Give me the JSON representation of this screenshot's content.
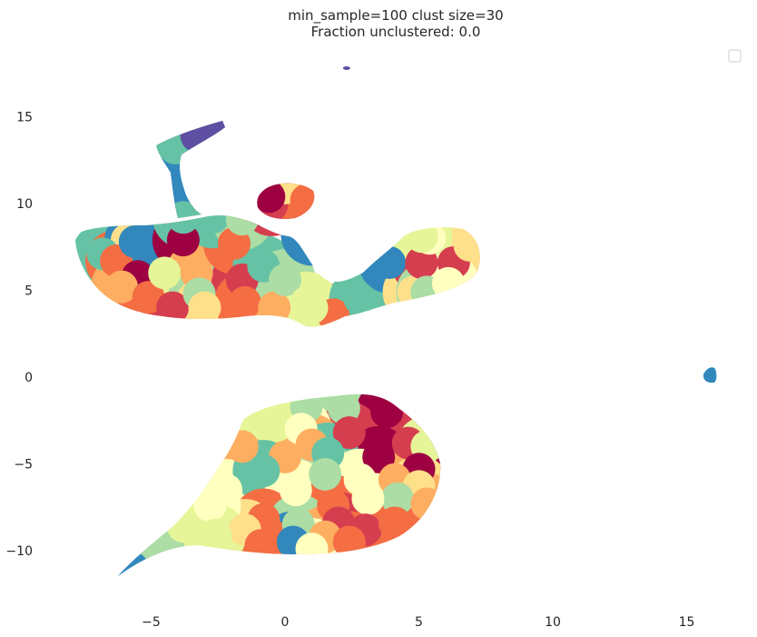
{
  "chart_data": {
    "type": "scatter",
    "title": "min_sample=100 clust size=30",
    "subtitle": "Fraction unclustered: 0.0",
    "xlabel": "",
    "ylabel": "",
    "xlim": [
      -8.5,
      17.5
    ],
    "ylim": [
      -13.0,
      18.0
    ],
    "x_ticks": [
      -5,
      0,
      5,
      10,
      15
    ],
    "x_tick_labels": [
      "−5",
      "0",
      "5",
      "10",
      "15"
    ],
    "y_ticks": [
      15,
      10,
      5,
      0,
      -5,
      -10
    ],
    "y_tick_labels": [
      "15",
      "10",
      "5",
      "0",
      "−5",
      "−10"
    ],
    "grid": false,
    "legend": {
      "placement": "top-right",
      "entries": []
    },
    "colormap": "Spectral",
    "palette": [
      "#9e0142",
      "#d53e4f",
      "#f46d43",
      "#fdae61",
      "#fee08b",
      "#ffffbf",
      "#e6f598",
      "#abdda4",
      "#66c2a5",
      "#3288bd",
      "#5e4fa2"
    ],
    "clusters": [
      {
        "x": -5.9,
        "y": 7.9,
        "color": "#fee08b"
      },
      {
        "x": -6.8,
        "y": 7.1,
        "color": "#66c2a5"
      },
      {
        "x": -6.3,
        "y": 6.7,
        "color": "#f46d43"
      },
      {
        "x": -5.5,
        "y": 5.8,
        "color": "#9e0142"
      },
      {
        "x": -6.1,
        "y": 5.2,
        "color": "#fdae61"
      },
      {
        "x": -5.1,
        "y": 4.6,
        "color": "#f46d43"
      },
      {
        "x": -4.2,
        "y": 4.0,
        "color": "#d53e4f"
      },
      {
        "x": -4.5,
        "y": 6.0,
        "color": "#e6f598"
      },
      {
        "x": -5.6,
        "y": 7.8,
        "color": "#3288bd"
      },
      {
        "x": -3.8,
        "y": 7.9,
        "color": "#9e0142"
      },
      {
        "x": -3.3,
        "y": 6.0,
        "color": "#fdae61"
      },
      {
        "x": -3.2,
        "y": 4.8,
        "color": "#abdda4"
      },
      {
        "x": -3.0,
        "y": 4.0,
        "color": "#fee08b"
      },
      {
        "x": -1.6,
        "y": 5.6,
        "color": "#d53e4f"
      },
      {
        "x": -1.9,
        "y": 7.7,
        "color": "#f46d43"
      },
      {
        "x": -1.5,
        "y": 4.3,
        "color": "#f46d43"
      },
      {
        "x": -0.4,
        "y": 4.0,
        "color": "#fdae61"
      },
      {
        "x": -0.8,
        "y": 6.4,
        "color": "#66c2a5"
      },
      {
        "x": 0.0,
        "y": 5.6,
        "color": "#abdda4"
      },
      {
        "x": 0.8,
        "y": 4.3,
        "color": "#e6f598"
      },
      {
        "x": 1.0,
        "y": 8.2,
        "color": "#3288bd"
      },
      {
        "x": -2.7,
        "y": 9.2,
        "color": "#66c2a5"
      },
      {
        "x": -3.8,
        "y": 9.2,
        "color": "#66c2a5"
      },
      {
        "x": -1.6,
        "y": 9.1,
        "color": "#abdda4"
      },
      {
        "x": -0.5,
        "y": 9.9,
        "color": "#d53e4f"
      },
      {
        "x": 0.0,
        "y": 10.9,
        "color": "#fee08b"
      },
      {
        "x": -0.6,
        "y": 10.4,
        "color": "#9e0142"
      },
      {
        "x": 0.8,
        "y": 10.2,
        "color": "#f46d43"
      },
      {
        "x": -4.1,
        "y": 13.2,
        "color": "#66c2a5"
      },
      {
        "x": -3.8,
        "y": 11.3,
        "color": "#3288bd"
      },
      {
        "x": -3.3,
        "y": 13.9,
        "color": "#5e4fa2"
      },
      {
        "x": -2.2,
        "y": 14.5,
        "color": "#5e4fa2"
      },
      {
        "x": 1.8,
        "y": 3.6,
        "color": "#f46d43"
      },
      {
        "x": 1.0,
        "y": 4.0,
        "color": "#e6f598"
      },
      {
        "x": 2.8,
        "y": 4.5,
        "color": "#66c2a5"
      },
      {
        "x": 3.9,
        "y": 6.6,
        "color": "#3288bd"
      },
      {
        "x": 4.8,
        "y": 4.9,
        "color": "#fee08b"
      },
      {
        "x": 5.1,
        "y": 6.6,
        "color": "#d53e4f"
      },
      {
        "x": 6.3,
        "y": 6.6,
        "color": "#d53e4f"
      },
      {
        "x": 5.4,
        "y": 8.0,
        "color": "#ffffbf"
      },
      {
        "x": 6.9,
        "y": 7.6,
        "color": "#fee08b"
      },
      {
        "x": 5.1,
        "y": 8.1,
        "color": "#e6f598"
      },
      {
        "x": 5.3,
        "y": 4.9,
        "color": "#abdda4"
      },
      {
        "x": 6.1,
        "y": 5.4,
        "color": "#ffffbf"
      },
      {
        "x": 15.9,
        "y": 0.2,
        "color": "#3288bd"
      },
      {
        "x": 2.3,
        "y": 17.8,
        "color": "#5e4fa2"
      },
      {
        "x": -1.5,
        "y": -2.4,
        "color": "#e6f598"
      },
      {
        "x": 0.8,
        "y": -1.7,
        "color": "#abdda4"
      },
      {
        "x": 2.2,
        "y": -1.8,
        "color": "#abdda4"
      },
      {
        "x": 3.8,
        "y": -2.0,
        "color": "#9e0142"
      },
      {
        "x": 2.4,
        "y": -3.2,
        "color": "#d53e4f"
      },
      {
        "x": 4.6,
        "y": -3.8,
        "color": "#d53e4f"
      },
      {
        "x": 5.3,
        "y": -4.0,
        "color": "#e6f598"
      },
      {
        "x": 3.5,
        "y": -4.6,
        "color": "#9e0142"
      },
      {
        "x": 5.0,
        "y": -5.3,
        "color": "#9e0142"
      },
      {
        "x": 0.6,
        "y": -3.0,
        "color": "#ffffbf"
      },
      {
        "x": 1.0,
        "y": -3.9,
        "color": "#fdae61"
      },
      {
        "x": 1.6,
        "y": -4.4,
        "color": "#66c2a5"
      },
      {
        "x": -1.6,
        "y": -4.0,
        "color": "#fdae61"
      },
      {
        "x": 0.0,
        "y": -4.6,
        "color": "#fdae61"
      },
      {
        "x": -0.5,
        "y": -2.0,
        "color": "#e6f598"
      },
      {
        "x": -2.2,
        "y": -6.5,
        "color": "#ffffbf"
      },
      {
        "x": -0.8,
        "y": -5.4,
        "color": "#66c2a5"
      },
      {
        "x": 1.5,
        "y": -5.6,
        "color": "#abdda4"
      },
      {
        "x": 2.8,
        "y": -5.9,
        "color": "#ffffbf"
      },
      {
        "x": 4.1,
        "y": -5.9,
        "color": "#fdae61"
      },
      {
        "x": 5.0,
        "y": -6.3,
        "color": "#fee08b"
      },
      {
        "x": 4.2,
        "y": -7.0,
        "color": "#abdda4"
      },
      {
        "x": 5.3,
        "y": -7.3,
        "color": "#fdae61"
      },
      {
        "x": 3.1,
        "y": -7.0,
        "color": "#ffffbf"
      },
      {
        "x": 0.4,
        "y": -6.5,
        "color": "#ffffbf"
      },
      {
        "x": 1.8,
        "y": -7.4,
        "color": "#f46d43"
      },
      {
        "x": 2.0,
        "y": -8.4,
        "color": "#d53e4f"
      },
      {
        "x": -0.8,
        "y": -8.2,
        "color": "#f46d43"
      },
      {
        "x": 0.5,
        "y": -8.5,
        "color": "#abdda4"
      },
      {
        "x": 3.0,
        "y": -8.8,
        "color": "#d53e4f"
      },
      {
        "x": 4.1,
        "y": -8.4,
        "color": "#f46d43"
      },
      {
        "x": -1.5,
        "y": -8.8,
        "color": "#fee08b"
      },
      {
        "x": 0.3,
        "y": -9.5,
        "color": "#3288bd"
      },
      {
        "x": 1.5,
        "y": -9.2,
        "color": "#fdae61"
      },
      {
        "x": 2.4,
        "y": -9.5,
        "color": "#f46d43"
      },
      {
        "x": -0.9,
        "y": -9.7,
        "color": "#f46d43"
      },
      {
        "x": 1.0,
        "y": -9.9,
        "color": "#ffffbf"
      },
      {
        "x": -2.8,
        "y": -7.4,
        "color": "#ffffbf"
      },
      {
        "x": -2.6,
        "y": -9.1,
        "color": "#e6f598"
      },
      {
        "x": -3.8,
        "y": -8.6,
        "color": "#e6f598"
      },
      {
        "x": -4.9,
        "y": -9.9,
        "color": "#abdda4"
      },
      {
        "x": -5.7,
        "y": -11.0,
        "color": "#3288bd"
      }
    ]
  },
  "legend_box": {
    "visible": true
  }
}
